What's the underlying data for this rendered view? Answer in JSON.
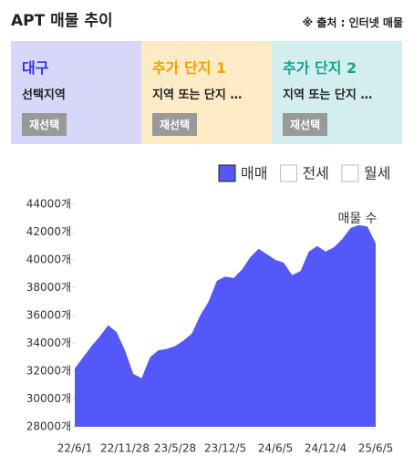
{
  "header": {
    "title": "APT 매물 추이",
    "source": "※ 출처 : 인터넷 매물"
  },
  "panels": [
    {
      "title": "대구",
      "subtitle": "선택지역",
      "button": "재선택"
    },
    {
      "title": "추가 단지 1",
      "subtitle": "지역 또는 단지 …",
      "button": "재선택"
    },
    {
      "title": "추가 단지 2",
      "subtitle": "지역 또는 단지 …",
      "button": "재선택"
    }
  ],
  "chart_data": {
    "type": "area",
    "annotation": "매물 수",
    "categories": [
      "22/6/1",
      null,
      null,
      null,
      null,
      null,
      "22/11/28",
      null,
      null,
      null,
      null,
      null,
      "23/5/28",
      null,
      null,
      null,
      null,
      null,
      "23/12/5",
      null,
      null,
      null,
      null,
      null,
      "24/6/5",
      null,
      null,
      null,
      null,
      null,
      "24/12/4",
      null,
      null,
      null,
      null,
      null,
      "25/6/5"
    ],
    "series": [
      {
        "name": "매매",
        "color": "#5558f8",
        "checked": true,
        "values": [
          32200,
          33000,
          33800,
          34500,
          35300,
          34800,
          33500,
          31800,
          31500,
          33000,
          33500,
          33600,
          33800,
          34200,
          34700,
          36000,
          37000,
          38500,
          38800,
          38700,
          39300,
          40200,
          40800,
          40400,
          40000,
          39800,
          38900,
          39200,
          40600,
          41000,
          40600,
          40900,
          41500,
          42300,
          42500,
          42400,
          41200
        ]
      }
    ],
    "inactive_series": [
      {
        "name": "전세",
        "checked": false
      },
      {
        "name": "월세",
        "checked": false
      }
    ],
    "ylim": [
      28000,
      44000
    ],
    "yticks": [
      {
        "value": 28000,
        "label": "28000개"
      },
      {
        "value": 30000,
        "label": "30000개"
      },
      {
        "value": 32000,
        "label": "32000개"
      },
      {
        "value": 34000,
        "label": "34000개"
      },
      {
        "value": 36000,
        "label": "36000개"
      },
      {
        "value": 38000,
        "label": "38000개"
      },
      {
        "value": 40000,
        "label": "40000개"
      },
      {
        "value": 42000,
        "label": "42000개"
      },
      {
        "value": 44000,
        "label": "44000개"
      }
    ],
    "grid": false
  }
}
